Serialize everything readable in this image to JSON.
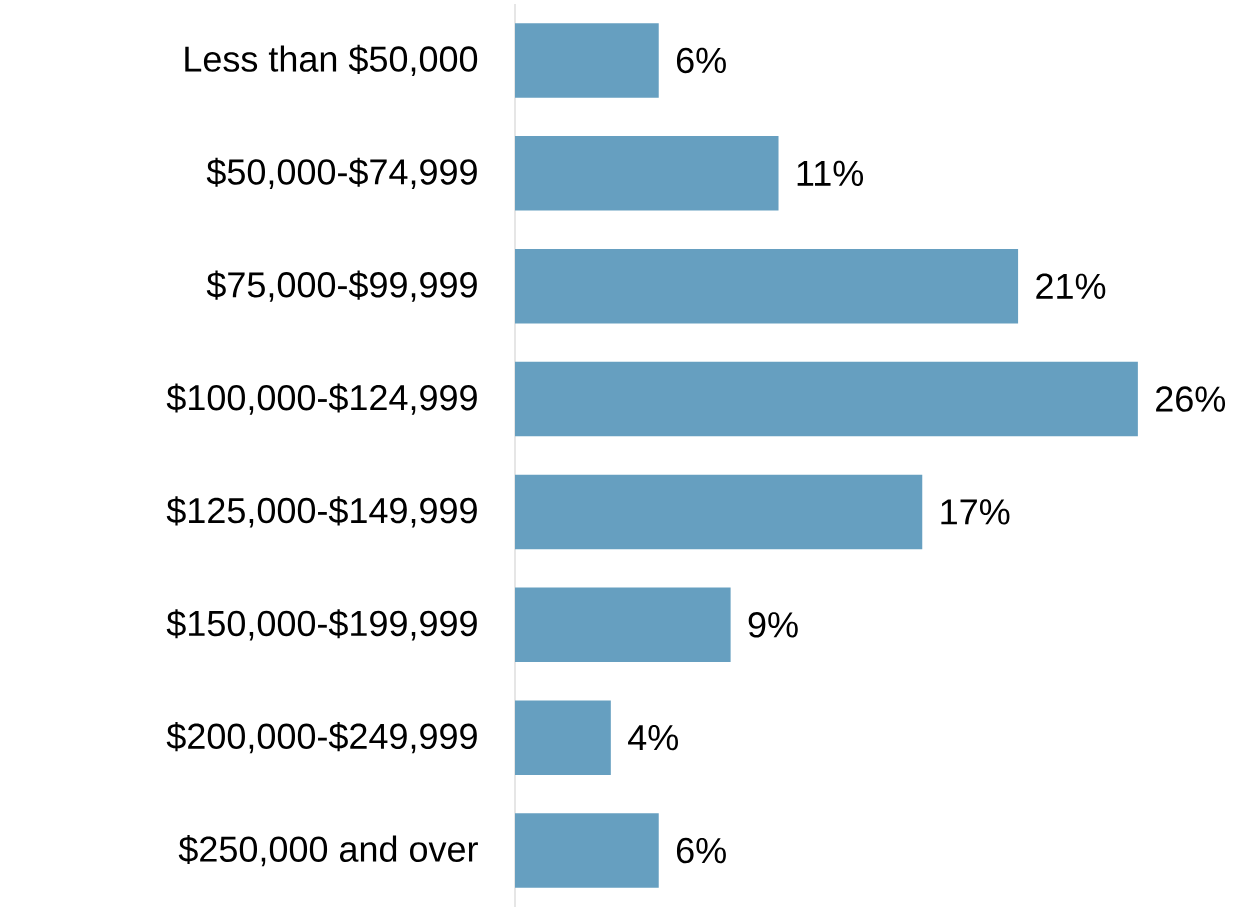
{
  "chart_data": {
    "type": "bar",
    "orientation": "horizontal",
    "categories": [
      "Less than $50,000",
      "$50,000-$74,999",
      "$75,000-$99,999",
      "$100,000-$124,999",
      "$125,000-$149,999",
      "$150,000-$199,999",
      "$200,000-$249,999",
      "$250,000 and over"
    ],
    "values": [
      6,
      11,
      21,
      26,
      17,
      9,
      4,
      6
    ],
    "value_labels": [
      "6%",
      "11%",
      "21%",
      "26%",
      "17%",
      "9%",
      "4%",
      "6%"
    ],
    "color": "#669fc0"
  }
}
